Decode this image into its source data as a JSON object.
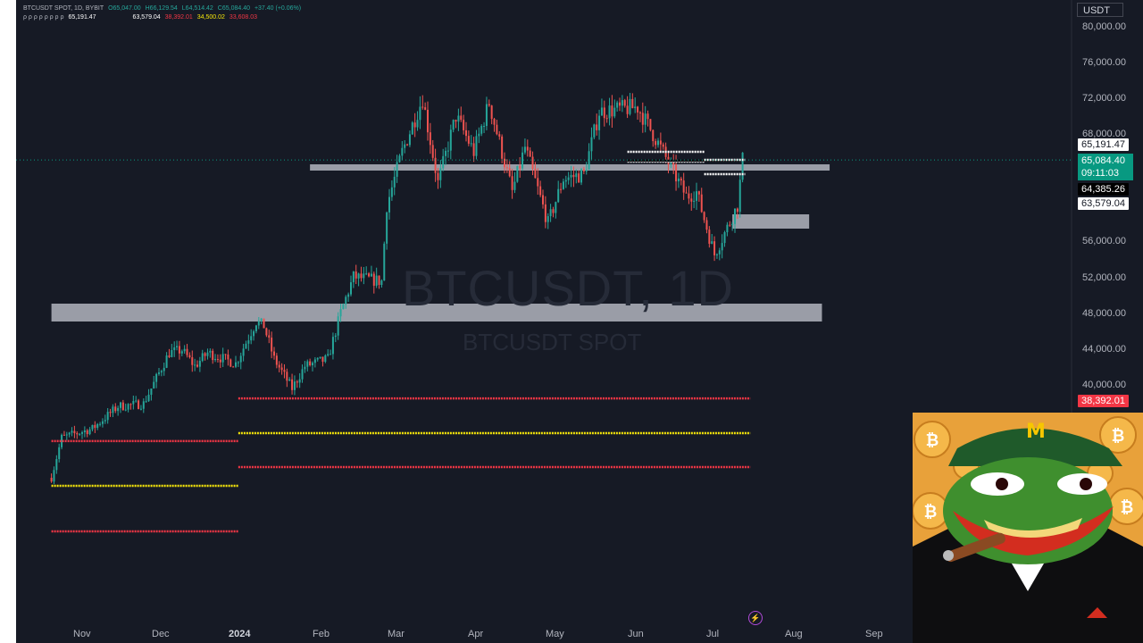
{
  "header": {
    "line1": [
      "BTCUSDT SPOT, 1D, BYBIT",
      "O65,047.00",
      "H66,129.54",
      "L64,514.42",
      "C65,084.40",
      "+37.40 (+0.06%)"
    ],
    "line2": [
      "65,191.47",
      "63,579.04",
      "38,392.01",
      "34,500.02",
      "33,608.03"
    ]
  },
  "watermark": {
    "symbol": "BTCUSDT, 1D",
    "subtitle": "BTCUSDT SPOT"
  },
  "currency_button": "USDT",
  "price_labels": {
    "p1": "65,191.47",
    "p2": "65,084.40",
    "p2_timer": "09:11:03",
    "p3": "64,385.26",
    "p4": "63,579.04",
    "p5": "38,392.01"
  },
  "y_ticks": [
    "80,000.00",
    "76,000.00",
    "72,000.00",
    "68,000.00",
    "56,000.00",
    "52,000.00",
    "48,000.00",
    "44,000.00",
    "40,000.00"
  ],
  "x_ticks": [
    "Nov",
    "Dec",
    "2024",
    "Feb",
    "Mar",
    "Apr",
    "May",
    "Jun",
    "Jul",
    "Aug",
    "Sep"
  ],
  "colors": {
    "up": "#26a69a",
    "down": "#ef5350",
    "red_level": "#f23645",
    "yellow_level": "#f5e50a",
    "zone": "#b2b5be",
    "current": "#089981"
  },
  "icons": {
    "meme": "frog-meme-image",
    "lightning": "lightning-icon"
  },
  "chart_data": {
    "type": "candlestick",
    "title": "BTCUSDT SPOT, 1D, BYBIT",
    "ylim": [
      28000,
      80000
    ],
    "x_range": [
      "2023-10-20",
      "2024-09-10"
    ],
    "anchors": [
      [
        "2023-10-20",
        29500
      ],
      [
        "2023-10-24",
        34000
      ],
      [
        "2023-11-05",
        35000
      ],
      [
        "2023-11-15",
        37500
      ],
      [
        "2023-11-25",
        37800
      ],
      [
        "2023-12-05",
        43500
      ],
      [
        "2023-12-10",
        43800
      ],
      [
        "2023-12-15",
        42000
      ],
      [
        "2023-12-20",
        43500
      ],
      [
        "2023-12-31",
        42300
      ],
      [
        "2024-01-08",
        47000
      ],
      [
        "2024-01-11",
        46500
      ],
      [
        "2024-01-15",
        42800
      ],
      [
        "2024-01-22",
        39500
      ],
      [
        "2024-01-27",
        42000
      ],
      [
        "2024-02-05",
        42800
      ],
      [
        "2024-02-10",
        48000
      ],
      [
        "2024-02-15",
        52000
      ],
      [
        "2024-02-26",
        51500
      ],
      [
        "2024-02-28",
        60000
      ],
      [
        "2024-03-05",
        66000
      ],
      [
        "2024-03-13",
        72000
      ],
      [
        "2024-03-19",
        62500
      ],
      [
        "2024-03-26",
        70000
      ],
      [
        "2024-04-02",
        66000
      ],
      [
        "2024-04-08",
        71500
      ],
      [
        "2024-04-17",
        61500
      ],
      [
        "2024-04-22",
        66500
      ],
      [
        "2024-05-01",
        58000
      ],
      [
        "2024-05-07",
        63000
      ],
      [
        "2024-05-15",
        63500
      ],
      [
        "2024-05-21",
        70500
      ],
      [
        "2024-06-05",
        71000
      ],
      [
        "2024-06-12",
        67500
      ],
      [
        "2024-06-24",
        61000
      ],
      [
        "2024-06-28",
        61500
      ],
      [
        "2024-07-05",
        54500
      ],
      [
        "2024-07-10",
        57500
      ],
      [
        "2024-07-14",
        60000
      ],
      [
        "2024-07-16",
        65084
      ]
    ],
    "levels": [
      {
        "type": "red",
        "value": 38392.01,
        "from": "2024-01-01",
        "to": "2024-07-19"
      },
      {
        "type": "yellow",
        "value": 34500.02,
        "from": "2024-01-01",
        "to": "2024-07-19"
      },
      {
        "type": "red",
        "value": 30700,
        "from": "2024-01-01",
        "to": "2024-07-19"
      },
      {
        "type": "red",
        "value": 33608.03,
        "from": "2023-10-20",
        "to": "2024-01-01"
      },
      {
        "type": "yellow",
        "value": 28600,
        "from": "2023-10-20",
        "to": "2024-01-01"
      },
      {
        "type": "red",
        "value": 23500,
        "from": "2023-10-20",
        "to": "2024-01-01"
      }
    ],
    "zones": [
      {
        "from": "2023-10-20",
        "to": "2024-08-16",
        "low": 47000,
        "high": 49000
      },
      {
        "from": "2024-01-29",
        "to": "2024-08-19",
        "low": 63900,
        "high": 64600
      },
      {
        "from": "2024-07-12",
        "to": "2024-08-11",
        "low": 57400,
        "high": 59000
      }
    ],
    "short_levels": [
      {
        "color": "white",
        "value": 66000,
        "from": "2024-06-01",
        "to": "2024-07-01"
      },
      {
        "color": "white",
        "value": 64900,
        "from": "2024-06-01",
        "to": "2024-07-01"
      },
      {
        "color": "black",
        "value": 65000,
        "from": "2024-06-01",
        "to": "2024-07-15"
      },
      {
        "color": "white",
        "value": 65100,
        "from": "2024-07-01",
        "to": "2024-07-17"
      },
      {
        "color": "white",
        "value": 63500,
        "from": "2024-07-01",
        "to": "2024-07-17"
      }
    ],
    "current_price": 65084.4
  }
}
